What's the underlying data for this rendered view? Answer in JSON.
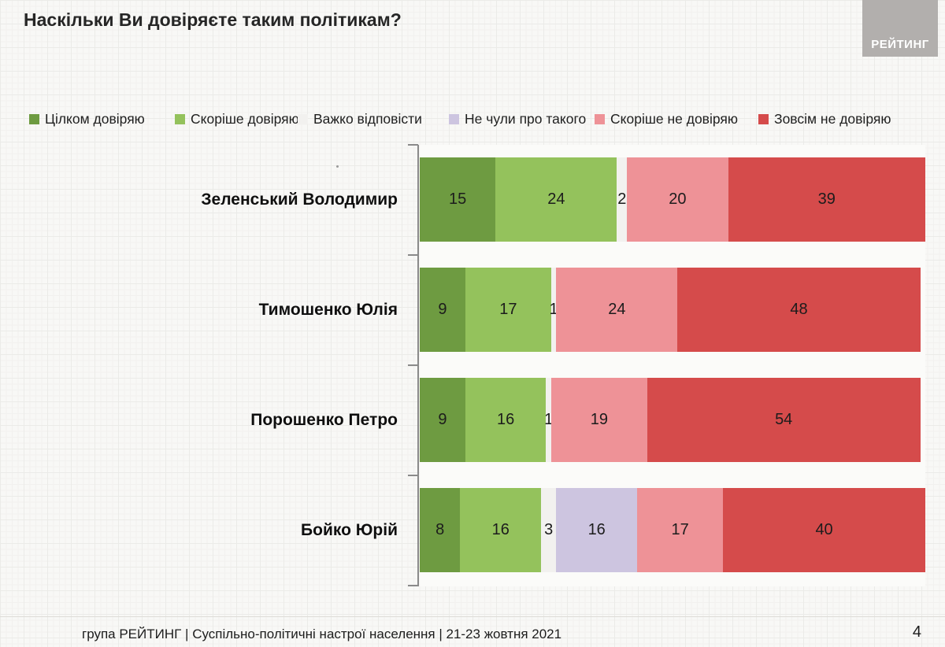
{
  "title": "Наскільки Ви довіряєте таким політикам?",
  "logo": {
    "text": "РЕЙТИНГ"
  },
  "page_number": "4",
  "footer": {
    "text": "група РЕЙТИНГ | Суспільно-політичні настрої населення  | 21-23 жовтня 2021"
  },
  "colors": {
    "fully_trust": "#6e9b41",
    "rather_trust": "#94c25c",
    "hard_to_answer": "#f2f1ef",
    "not_heard": "#cdc5e0",
    "rather_distrust": "#ee9297",
    "full_distrust": "#d54b4b",
    "axis": "#8a8a8a",
    "logo_bg": "#b2afad"
  },
  "chart_data": {
    "type": "bar",
    "orientation": "horizontal",
    "stacked": true,
    "unit": "percent",
    "xlim": [
      0,
      100
    ],
    "grid": false,
    "legend_position": "top",
    "title": "Наскільки Ви довіряєте таким політикам?",
    "xlabel": "",
    "ylabel": "",
    "categories": [
      "Зеленський Володимир",
      "Тимошенко Юлія",
      "Порошенко Петро",
      "Бойко Юрій"
    ],
    "series": [
      {
        "name": "Цілком довіряю",
        "color": "#6e9b41",
        "values": [
          15,
          9,
          9,
          8
        ]
      },
      {
        "name": "Скоріше довіряю",
        "color": "#94c25c",
        "values": [
          24,
          17,
          16,
          16
        ]
      },
      {
        "name": "Важко відповісти",
        "color": "#f2f1ef",
        "values": [
          2,
          1,
          1,
          3
        ]
      },
      {
        "name": "Не чули про такого",
        "color": "#cdc5e0",
        "values": [
          0,
          0,
          0,
          16
        ]
      },
      {
        "name": "Скоріше не довіряю",
        "color": "#ee9297",
        "values": [
          20,
          24,
          19,
          17
        ]
      },
      {
        "name": "Зовсім не довіряю",
        "color": "#d54b4b",
        "values": [
          39,
          48,
          54,
          40
        ]
      }
    ]
  }
}
